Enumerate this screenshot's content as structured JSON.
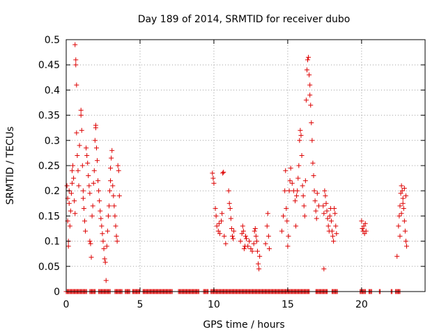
{
  "chart_data": {
    "type": "scatter",
    "title": "Day 189 of 2014, SRMTID for receiver dubo",
    "xlabel": "GPS time / hours",
    "ylabel": "SRMTID / TECUs",
    "xlim": [
      0,
      24.3
    ],
    "ylim": [
      0,
      0.5
    ],
    "xticks": [
      0,
      5,
      10,
      15,
      20
    ],
    "xtick_labels": [
      "0",
      "5",
      "10",
      "15",
      "20"
    ],
    "yticks": [
      0,
      0.05,
      0.1,
      0.15,
      0.2,
      0.25,
      0.3,
      0.35,
      0.4,
      0.45,
      0.5
    ],
    "ytick_labels": [
      "0",
      "0.05",
      "0.1",
      "0.15",
      "0.2",
      "0.25",
      "0.3",
      "0.35",
      "0.4",
      "0.45",
      "0.5"
    ],
    "grid": true,
    "marker": "+",
    "marker_color": "#dd0000",
    "series": [
      {
        "name": "SRMTID",
        "points": [
          [
            0.05,
            0.21
          ],
          [
            0.1,
            0.185
          ],
          [
            0.1,
            0.14
          ],
          [
            0.15,
            0.1
          ],
          [
            0.15,
            0.09
          ],
          [
            0.2,
            0.175
          ],
          [
            0.2,
            0.2
          ],
          [
            0.25,
            0.13
          ],
          [
            0.3,
            0.16
          ],
          [
            0.35,
            0.195
          ],
          [
            0.4,
            0.215
          ],
          [
            0.4,
            0.24
          ],
          [
            0.45,
            0.25
          ],
          [
            0.5,
            0.225
          ],
          [
            0.55,
            0.18
          ],
          [
            0.6,
            0.155
          ],
          [
            0.6,
            0.49
          ],
          [
            0.65,
            0.46
          ],
          [
            0.65,
            0.45
          ],
          [
            0.7,
            0.41
          ],
          [
            0.7,
            0.315
          ],
          [
            0.75,
            0.27
          ],
          [
            0.8,
            0.24
          ],
          [
            0.85,
            0.21
          ],
          [
            0.9,
            0.29
          ],
          [
            1.0,
            0.36
          ],
          [
            1.0,
            0.35
          ],
          [
            1.05,
            0.32
          ],
          [
            1.1,
            0.25
          ],
          [
            1.15,
            0.2
          ],
          [
            1.15,
            0.185
          ],
          [
            1.2,
            0.165
          ],
          [
            1.25,
            0.14
          ],
          [
            1.3,
            0.12
          ],
          [
            1.35,
            0.285
          ],
          [
            1.4,
            0.27
          ],
          [
            1.45,
            0.255
          ],
          [
            1.5,
            0.23
          ],
          [
            1.55,
            0.21
          ],
          [
            1.6,
            0.195
          ],
          [
            1.6,
            0.1
          ],
          [
            1.65,
            0.095
          ],
          [
            1.7,
            0.068
          ],
          [
            1.75,
            0.15
          ],
          [
            1.8,
            0.17
          ],
          [
            1.85,
            0.215
          ],
          [
            1.9,
            0.24
          ],
          [
            1.95,
            0.3
          ],
          [
            2.0,
            0.33
          ],
          [
            2.0,
            0.325
          ],
          [
            2.05,
            0.285
          ],
          [
            2.1,
            0.26
          ],
          [
            2.15,
            0.22
          ],
          [
            2.2,
            0.2
          ],
          [
            2.25,
            0.18
          ],
          [
            2.3,
            0.16
          ],
          [
            2.35,
            0.145
          ],
          [
            2.4,
            0.13
          ],
          [
            2.45,
            0.115
          ],
          [
            2.5,
            0.1
          ],
          [
            2.55,
            0.085
          ],
          [
            2.6,
            0.065
          ],
          [
            2.65,
            0.058
          ],
          [
            2.7,
            0.022
          ],
          [
            2.75,
            0.09
          ],
          [
            2.8,
            0.12
          ],
          [
            2.85,
            0.15
          ],
          [
            2.9,
            0.17
          ],
          [
            2.95,
            0.2
          ],
          [
            3.0,
            0.22
          ],
          [
            3.0,
            0.245
          ],
          [
            3.05,
            0.265
          ],
          [
            3.1,
            0.28
          ],
          [
            3.15,
            0.21
          ],
          [
            3.2,
            0.19
          ],
          [
            3.25,
            0.17
          ],
          [
            3.3,
            0.15
          ],
          [
            3.35,
            0.13
          ],
          [
            3.4,
            0.11
          ],
          [
            3.45,
            0.1
          ],
          [
            3.5,
            0.25
          ],
          [
            3.55,
            0.24
          ],
          [
            3.6,
            0.19
          ],
          [
            9.9,
            0.235
          ],
          [
            9.95,
            0.225
          ],
          [
            10.0,
            0.215
          ],
          [
            10.1,
            0.165
          ],
          [
            10.15,
            0.15
          ],
          [
            10.2,
            0.13
          ],
          [
            10.3,
            0.12
          ],
          [
            10.35,
            0.135
          ],
          [
            10.4,
            0.115
          ],
          [
            10.5,
            0.14
          ],
          [
            10.55,
            0.155
          ],
          [
            10.6,
            0.235
          ],
          [
            10.65,
            0.237
          ],
          [
            10.7,
            0.11
          ],
          [
            10.8,
            0.095
          ],
          [
            11.0,
            0.2
          ],
          [
            11.05,
            0.175
          ],
          [
            11.1,
            0.165
          ],
          [
            11.15,
            0.145
          ],
          [
            11.2,
            0.125
          ],
          [
            11.25,
            0.11
          ],
          [
            11.3,
            0.105
          ],
          [
            11.35,
            0.12
          ],
          [
            11.8,
            0.1
          ],
          [
            11.9,
            0.115
          ],
          [
            11.95,
            0.13
          ],
          [
            12.0,
            0.12
          ],
          [
            12.05,
            0.085
          ],
          [
            12.1,
            0.09
          ],
          [
            12.15,
            0.11
          ],
          [
            12.2,
            0.105
          ],
          [
            12.3,
            0.09
          ],
          [
            12.4,
            0.1
          ],
          [
            12.5,
            0.085
          ],
          [
            12.6,
            0.08
          ],
          [
            12.7,
            0.095
          ],
          [
            12.75,
            0.12
          ],
          [
            12.8,
            0.125
          ],
          [
            12.85,
            0.11
          ],
          [
            12.9,
            0.1
          ],
          [
            12.95,
            0.08
          ],
          [
            13.0,
            0.055
          ],
          [
            13.05,
            0.045
          ],
          [
            13.1,
            0.07
          ],
          [
            13.5,
            0.095
          ],
          [
            13.6,
            0.13
          ],
          [
            13.65,
            0.155
          ],
          [
            13.7,
            0.11
          ],
          [
            13.75,
            0.085
          ],
          [
            14.6,
            0.12
          ],
          [
            14.7,
            0.15
          ],
          [
            14.8,
            0.2
          ],
          [
            14.85,
            0.24
          ],
          [
            14.9,
            0.165
          ],
          [
            14.95,
            0.14
          ],
          [
            15.0,
            0.09
          ],
          [
            15.05,
            0.11
          ],
          [
            15.1,
            0.2
          ],
          [
            15.15,
            0.22
          ],
          [
            15.2,
            0.245
          ],
          [
            15.3,
            0.215
          ],
          [
            15.4,
            0.2
          ],
          [
            15.5,
            0.18
          ],
          [
            15.55,
            0.13
          ],
          [
            15.6,
            0.19
          ],
          [
            15.65,
            0.2
          ],
          [
            15.7,
            0.225
          ],
          [
            15.75,
            0.25
          ],
          [
            15.8,
            0.3
          ],
          [
            15.85,
            0.32
          ],
          [
            15.9,
            0.31
          ],
          [
            15.95,
            0.27
          ],
          [
            16.0,
            0.21
          ],
          [
            16.05,
            0.19
          ],
          [
            16.1,
            0.17
          ],
          [
            16.15,
            0.15
          ],
          [
            16.2,
            0.22
          ],
          [
            16.25,
            0.38
          ],
          [
            16.3,
            0.44
          ],
          [
            16.35,
            0.46
          ],
          [
            16.4,
            0.465
          ],
          [
            16.45,
            0.43
          ],
          [
            16.5,
            0.41
          ],
          [
            16.5,
            0.39
          ],
          [
            16.55,
            0.37
          ],
          [
            16.6,
            0.335
          ],
          [
            16.65,
            0.3
          ],
          [
            16.7,
            0.255
          ],
          [
            16.75,
            0.23
          ],
          [
            16.8,
            0.2
          ],
          [
            16.85,
            0.18
          ],
          [
            16.9,
            0.16
          ],
          [
            16.95,
            0.145
          ],
          [
            17.0,
            0.195
          ],
          [
            17.1,
            0.17
          ],
          [
            17.5,
            0.2
          ],
          [
            17.55,
            0.19
          ],
          [
            17.6,
            0.175
          ],
          [
            17.65,
            0.16
          ],
          [
            17.7,
            0.145
          ],
          [
            17.75,
            0.13
          ],
          [
            17.8,
            0.12
          ],
          [
            17.85,
            0.15
          ],
          [
            17.9,
            0.165
          ],
          [
            17.95,
            0.14
          ],
          [
            18.0,
            0.12
          ],
          [
            18.05,
            0.11
          ],
          [
            18.1,
            0.1
          ],
          [
            18.15,
            0.165
          ],
          [
            18.2,
            0.155
          ],
          [
            18.25,
            0.13
          ],
          [
            18.3,
            0.115
          ],
          [
            17.45,
            0.045
          ],
          [
            17.4,
            0.17
          ],
          [
            17.45,
            0.155
          ],
          [
            20.0,
            0.14
          ],
          [
            20.05,
            0.125
          ],
          [
            20.1,
            0.12
          ],
          [
            20.15,
            0.13
          ],
          [
            20.2,
            0.115
          ],
          [
            20.25,
            0.135
          ],
          [
            20.3,
            0.12
          ],
          [
            22.4,
            0.07
          ],
          [
            22.5,
            0.13
          ],
          [
            22.55,
            0.15
          ],
          [
            22.6,
            0.17
          ],
          [
            22.65,
            0.195
          ],
          [
            22.7,
            0.21
          ],
          [
            22.75,
            0.2
          ],
          [
            22.8,
            0.185
          ],
          [
            22.85,
            0.165
          ],
          [
            22.9,
            0.14
          ],
          [
            22.95,
            0.12
          ],
          [
            23.0,
            0.1
          ],
          [
            23.05,
            0.09
          ],
          [
            22.6,
            0.11
          ],
          [
            22.7,
            0.155
          ],
          [
            22.8,
            0.175
          ],
          [
            22.9,
            0.205
          ],
          [
            23.0,
            0.19
          ]
        ]
      }
    ],
    "zero_baseline_segments": [
      [
        0.0,
        1.4
      ],
      [
        1.6,
        2.0
      ],
      [
        2.2,
        3.0
      ],
      [
        3.3,
        3.8
      ],
      [
        4.0,
        4.3
      ],
      [
        4.5,
        5.0
      ],
      [
        5.2,
        7.2
      ],
      [
        7.6,
        9.0
      ],
      [
        9.3,
        9.6
      ],
      [
        9.8,
        16.5
      ],
      [
        16.9,
        17.7
      ],
      [
        18.0,
        18.4
      ],
      [
        19.9,
        20.3
      ],
      [
        20.5,
        20.7
      ],
      [
        21.2,
        21.3
      ],
      [
        22.0,
        22.1
      ],
      [
        22.3,
        22.6
      ]
    ]
  }
}
